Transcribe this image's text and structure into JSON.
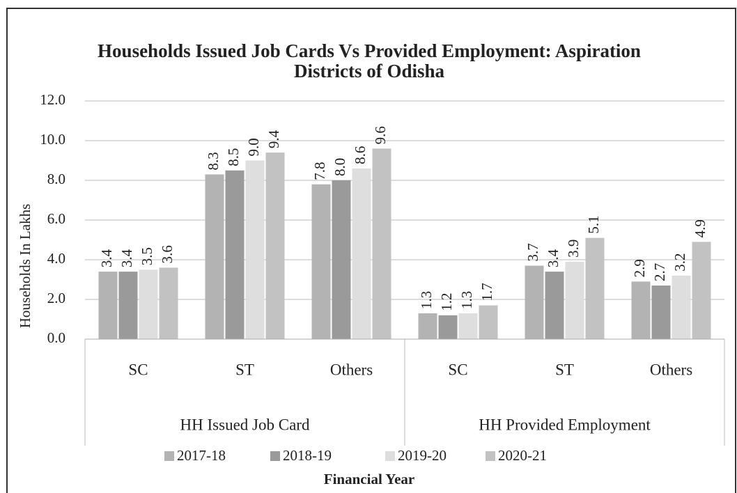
{
  "chart_data": {
    "type": "bar",
    "title": "Households Issued Job Cards Vs Provided Employment: Aspiration Districts of Odisha",
    "y_label": "Households In Lakhs",
    "x_label": "Financial Year",
    "groups": [
      {
        "label": "HH Issued Job Card",
        "categories": [
          "SC",
          "ST",
          "Others"
        ]
      },
      {
        "label": "HH Provided Employment",
        "categories": [
          "SC",
          "ST",
          "Others"
        ]
      }
    ],
    "series": [
      {
        "name": "2017-18",
        "color": "#b3b3b3",
        "values": [
          3.4,
          8.3,
          7.8,
          1.3,
          3.7,
          2.9
        ],
        "value_labels": [
          "3.4",
          "8.3",
          "7.8",
          "1.3",
          "3.7",
          "2.9"
        ]
      },
      {
        "name": "2018-19",
        "color": "#9a9a9a",
        "values": [
          3.4,
          8.5,
          8.0,
          1.2,
          3.4,
          2.7
        ],
        "value_labels": [
          "3.4",
          "8.5",
          "8.0",
          "1.2",
          "3.4",
          "2.7"
        ]
      },
      {
        "name": "2019-20",
        "color": "#dedede",
        "values": [
          3.5,
          9.0,
          8.6,
          1.3,
          3.9,
          3.2
        ],
        "value_labels": [
          "3.5",
          "9.0",
          "8.6",
          "1.3",
          "3.9",
          "3.2"
        ]
      },
      {
        "name": "2020-21",
        "color": "#c2c2c2",
        "values": [
          3.6,
          9.4,
          9.6,
          1.7,
          5.1,
          4.9
        ],
        "value_labels": [
          "3.6",
          "9.4",
          "9.6",
          "1.7",
          "5.1",
          "4.9"
        ]
      }
    ],
    "ylim": [
      0,
      12
    ],
    "yticks": [
      {
        "value": 0,
        "label": "0.0"
      },
      {
        "value": 2,
        "label": "2.0"
      },
      {
        "value": 4,
        "label": "4.0"
      },
      {
        "value": 6,
        "label": "6.0"
      },
      {
        "value": 8,
        "label": "8.0"
      },
      {
        "value": 10,
        "label": "10.0"
      },
      {
        "value": 12,
        "label": "12.0"
      }
    ],
    "grid": true,
    "legend": "bottom"
  }
}
